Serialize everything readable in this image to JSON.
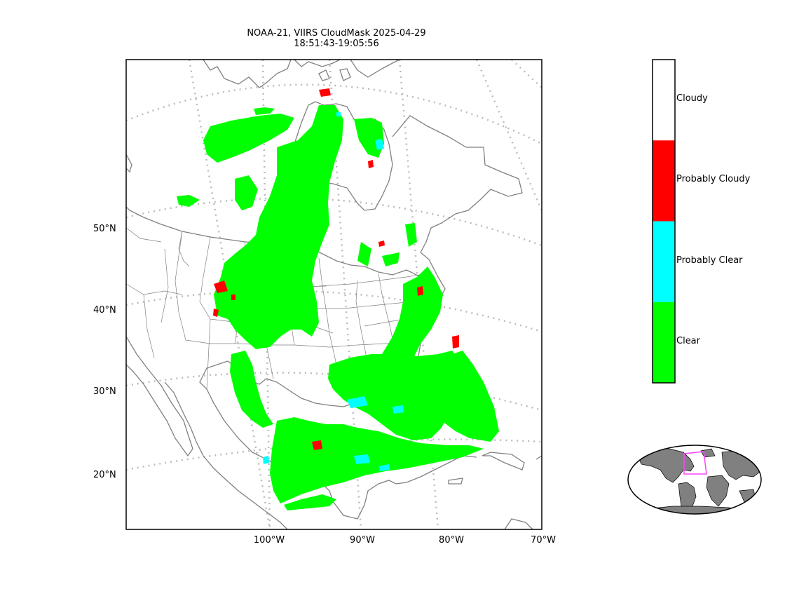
{
  "title": {
    "line1": "NOAA-21, VIIRS CloudMask 2025-04-29",
    "line2": "18:51:43-19:05:56"
  },
  "map": {
    "lat_labels": [
      "50°N",
      "40°N",
      "30°N",
      "20°N"
    ],
    "lon_labels": [
      "100°W",
      "90°W",
      "80°W",
      "70°W"
    ],
    "colors": {
      "coastline": "#808080",
      "graticule": "#bbbbbb",
      "clear": "#00ff00",
      "probably_clear": "#00ffff",
      "probably_cloudy": "#ff0000",
      "cloudy": "#ffffff"
    }
  },
  "colorbar": {
    "categories": [
      "Cloudy",
      "Probably Cloudy",
      "Probably Clear",
      "Clear"
    ],
    "colors": [
      "#ffffff",
      "#ff0000",
      "#00ffff",
      "#00ff00"
    ]
  },
  "inset": {
    "land_color": "#808080",
    "box_color": "#ff44ff"
  }
}
